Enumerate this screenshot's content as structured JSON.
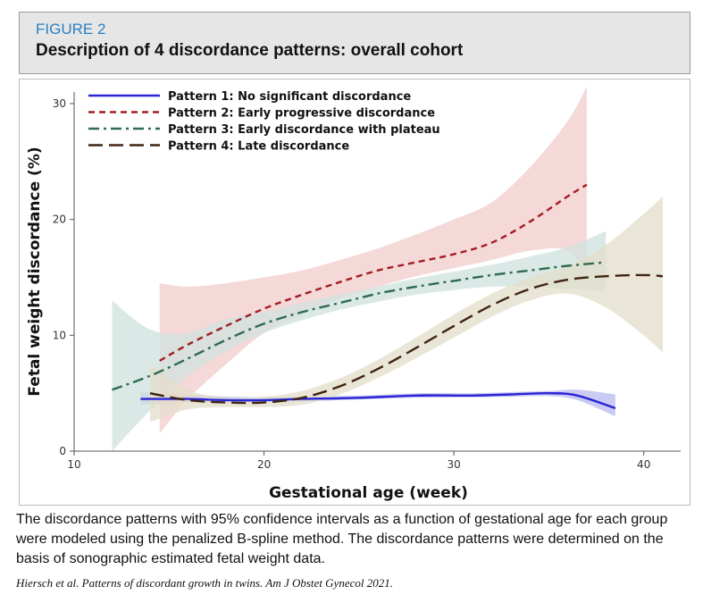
{
  "header": {
    "figure_label": "FIGURE 2",
    "title": "Description of 4 discordance patterns: overall cohort"
  },
  "caption": "The discordance patterns with 95% confidence intervals as a function of gestational age for each group were modeled using the penalized B-spline method. The discordance patterns were determined on the basis of sonographic estimated fetal weight data.",
  "citation": "Hiersch et al. Patterns of discordant growth in twins. Am J Obstet Gynecol 2021.",
  "chart_data": {
    "type": "line",
    "xlabel": "Gestational age (week)",
    "ylabel": "Fetal weight discordance (%)",
    "xlim": [
      10,
      41
    ],
    "ylim": [
      0,
      31
    ],
    "x_ticks": [
      10,
      20,
      30,
      40
    ],
    "y_ticks": [
      0,
      10,
      20,
      30
    ],
    "grid": false,
    "legend_position": "top-left",
    "series": [
      {
        "name": "Pattern 1: No significant discordance",
        "color": "#2a24d6",
        "dash": "solid",
        "band_color": "#b8b8ee",
        "x": [
          13.5,
          16,
          18,
          20,
          22,
          25,
          28,
          31,
          33,
          35,
          36.5,
          38.5
        ],
        "y": [
          4.5,
          4.5,
          4.4,
          4.4,
          4.5,
          4.6,
          4.8,
          4.8,
          4.9,
          5.0,
          4.8,
          3.7
        ],
        "lower": [
          4.0,
          4.2,
          4.2,
          4.2,
          4.3,
          4.45,
          4.6,
          4.65,
          4.7,
          4.75,
          4.4,
          3.0
        ],
        "upper": [
          5.1,
          4.9,
          4.7,
          4.65,
          4.7,
          4.8,
          5.0,
          5.0,
          5.1,
          5.2,
          5.3,
          4.9
        ]
      },
      {
        "name": "Pattern 2: Early progressive discordance",
        "color": "#a01e23",
        "dash": "dashed",
        "band_color": "#f1cccc",
        "x": [
          14.5,
          16,
          18,
          20,
          22,
          24,
          26,
          28,
          30,
          32,
          34,
          36,
          37
        ],
        "y": [
          7.8,
          9.2,
          10.8,
          12.3,
          13.5,
          14.6,
          15.6,
          16.3,
          17.0,
          18.0,
          19.8,
          22.0,
          23.0
        ],
        "lower": [
          1.5,
          4.5,
          7.5,
          10.2,
          11.8,
          13.2,
          14.2,
          15.1,
          15.8,
          16.5,
          17.3,
          17.3,
          15.0
        ],
        "upper": [
          14.5,
          14.2,
          14.5,
          15.0,
          15.6,
          16.5,
          17.5,
          18.7,
          20.0,
          21.5,
          24.5,
          28.5,
          31.5
        ]
      },
      {
        "name": "Pattern 3: Early discordance with plateau",
        "color": "#2f6b4f",
        "dash": "dashdot",
        "band_color": "#cfe1dd",
        "x": [
          12,
          14,
          16,
          18,
          20,
          22,
          24,
          26,
          28,
          30,
          32,
          34,
          36,
          38
        ],
        "y": [
          5.3,
          6.5,
          8.0,
          9.6,
          11.0,
          12.0,
          12.8,
          13.6,
          14.2,
          14.7,
          15.2,
          15.6,
          16.0,
          16.3
        ],
        "lower": [
          0,
          3.5,
          6.5,
          8.6,
          10.2,
          11.3,
          12.2,
          12.9,
          13.5,
          13.9,
          14.2,
          14.2,
          14.0,
          13.8
        ],
        "upper": [
          13.0,
          10.5,
          10.2,
          11.4,
          12.0,
          12.8,
          13.5,
          14.2,
          14.9,
          15.5,
          16.1,
          16.8,
          17.6,
          19.0
        ]
      },
      {
        "name": "Pattern 4: Late discordance",
        "color": "#3f2412",
        "dash": "longdash",
        "band_color": "#e3ddca",
        "x": [
          14,
          16,
          18,
          20,
          22,
          24,
          26,
          28,
          30,
          32,
          34,
          36,
          38,
          40,
          41
        ],
        "y": [
          5.0,
          4.4,
          4.2,
          4.2,
          4.6,
          5.6,
          7.1,
          8.9,
          10.8,
          12.6,
          14.0,
          14.8,
          15.1,
          15.2,
          15.1
        ],
        "lower": [
          2.5,
          3.6,
          3.8,
          3.8,
          4.0,
          4.9,
          6.3,
          8.0,
          9.8,
          11.6,
          13.0,
          13.6,
          12.4,
          10.0,
          8.5
        ],
        "upper": [
          7.5,
          5.3,
          4.6,
          4.7,
          5.2,
          6.3,
          7.9,
          9.8,
          11.8,
          13.6,
          15.0,
          16.0,
          17.8,
          20.5,
          22.0
        ]
      }
    ]
  }
}
